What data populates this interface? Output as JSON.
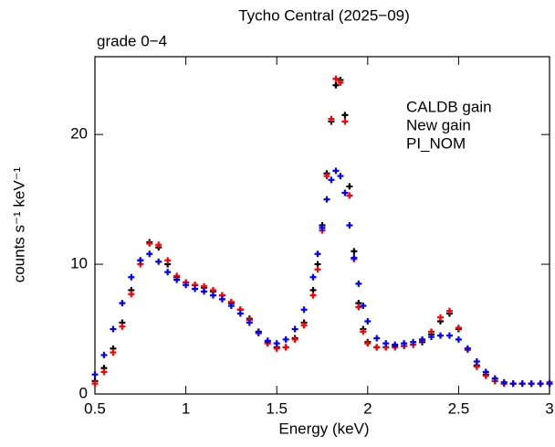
{
  "chart_data": {
    "type": "scatter",
    "title": "Tycho Central (2025−09)",
    "subtitle": "grade 0−4",
    "x_label": "Energy (keV)",
    "y_label": "counts s⁻¹ keV⁻¹",
    "xlim": [
      0.5,
      3.0
    ],
    "ylim": [
      0,
      26
    ],
    "xticks": [
      0.5,
      1,
      1.5,
      2,
      2.5,
      3
    ],
    "yticks": [
      0,
      10,
      20
    ],
    "legend": "upper right",
    "x": [
      0.5,
      0.55,
      0.6,
      0.65,
      0.7,
      0.75,
      0.8,
      0.85,
      0.9,
      0.95,
      1.0,
      1.05,
      1.1,
      1.15,
      1.2,
      1.25,
      1.3,
      1.35,
      1.4,
      1.45,
      1.5,
      1.55,
      1.6,
      1.65,
      1.7,
      1.725,
      1.75,
      1.775,
      1.8,
      1.825,
      1.85,
      1.875,
      1.9,
      1.925,
      1.95,
      1.975,
      2.0,
      2.05,
      2.1,
      2.15,
      2.2,
      2.25,
      2.3,
      2.35,
      2.4,
      2.45,
      2.5,
      2.55,
      2.6,
      2.65,
      2.7,
      2.75,
      2.8,
      2.85,
      2.9,
      2.95,
      3.0
    ],
    "series": [
      {
        "name": "CALDB gain",
        "color": "#000000",
        "values": [
          1.0,
          2.0,
          3.5,
          5.5,
          8.0,
          10.3,
          11.7,
          11.3,
          10.0,
          9.0,
          8.6,
          8.4,
          8.2,
          7.9,
          7.6,
          7.0,
          6.5,
          5.8,
          4.8,
          4.0,
          3.6,
          3.6,
          4.3,
          5.5,
          8.0,
          10.0,
          13.0,
          17.0,
          21.0,
          23.8,
          24.2,
          21.5,
          16.0,
          11.0,
          7.0,
          5.0,
          4.0,
          3.6,
          3.6,
          3.7,
          3.7,
          3.8,
          4.0,
          4.6,
          5.6,
          6.2,
          5.0,
          3.5,
          2.2,
          1.5,
          1.0,
          0.8,
          0.8,
          0.8,
          0.8,
          0.8,
          0.8
        ]
      },
      {
        "name": "New gain",
        "color": "#ff0000",
        "values": [
          0.8,
          1.7,
          3.2,
          5.2,
          7.7,
          10.0,
          11.6,
          11.5,
          10.3,
          9.1,
          8.6,
          8.4,
          8.3,
          8.0,
          7.6,
          7.1,
          6.5,
          5.7,
          4.7,
          3.9,
          3.5,
          3.6,
          4.2,
          5.3,
          7.6,
          9.6,
          12.6,
          16.8,
          21.2,
          24.3,
          24.0,
          21.0,
          15.3,
          10.4,
          6.7,
          4.8,
          3.9,
          3.6,
          3.6,
          3.6,
          3.7,
          3.8,
          4.1,
          4.8,
          5.9,
          6.4,
          5.1,
          3.4,
          2.1,
          1.4,
          1.0,
          0.8,
          0.8,
          0.8,
          0.8,
          0.8,
          0.9
        ]
      },
      {
        "name": "PI_NOM",
        "color": "#0000ff",
        "values": [
          1.5,
          3.0,
          5.0,
          7.0,
          9.0,
          10.3,
          10.8,
          10.2,
          9.4,
          8.8,
          8.4,
          8.1,
          7.9,
          7.6,
          7.3,
          6.8,
          6.2,
          5.5,
          4.7,
          4.1,
          3.9,
          4.2,
          5.0,
          6.5,
          9.0,
          10.8,
          12.8,
          15.0,
          16.5,
          17.2,
          16.8,
          15.5,
          13.0,
          10.5,
          8.5,
          6.8,
          5.6,
          4.3,
          3.9,
          3.8,
          3.9,
          4.0,
          4.2,
          4.4,
          4.5,
          4.5,
          4.2,
          3.5,
          2.5,
          1.7,
          1.2,
          0.9,
          0.8,
          0.8,
          0.8,
          0.8,
          0.8
        ]
      }
    ]
  }
}
